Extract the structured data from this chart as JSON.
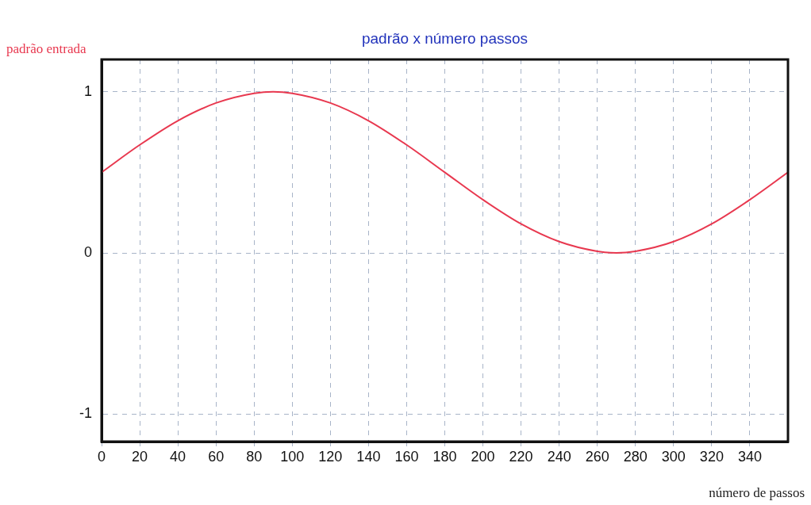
{
  "chart_data": {
    "type": "line",
    "title": "padrão x número passos",
    "xlabel": "número  de passos",
    "ylabel": "padrão entrada",
    "x": [
      0,
      20,
      40,
      60,
      80,
      90,
      100,
      120,
      140,
      160,
      180,
      200,
      220,
      240,
      260,
      270,
      280,
      300,
      320,
      340,
      360
    ],
    "series": [
      {
        "color": "#e8384f",
        "values": [
          0.5,
          0.67,
          0.82,
          0.93,
          0.99,
          1.0,
          0.99,
          0.93,
          0.82,
          0.67,
          0.5,
          0.33,
          0.18,
          0.07,
          0.01,
          0.0,
          0.01,
          0.07,
          0.18,
          0.33,
          0.5
        ]
      }
    ],
    "xlim": [
      0,
      360
    ],
    "xticks": [
      0,
      20,
      40,
      60,
      80,
      100,
      120,
      140,
      160,
      180,
      200,
      220,
      240,
      260,
      280,
      300,
      320,
      340
    ],
    "ylim": [
      -1.17,
      1.2
    ],
    "yticks": [
      -1,
      0,
      1
    ],
    "grid": true,
    "legend": false,
    "marker": "none",
    "line_style": "solid"
  }
}
